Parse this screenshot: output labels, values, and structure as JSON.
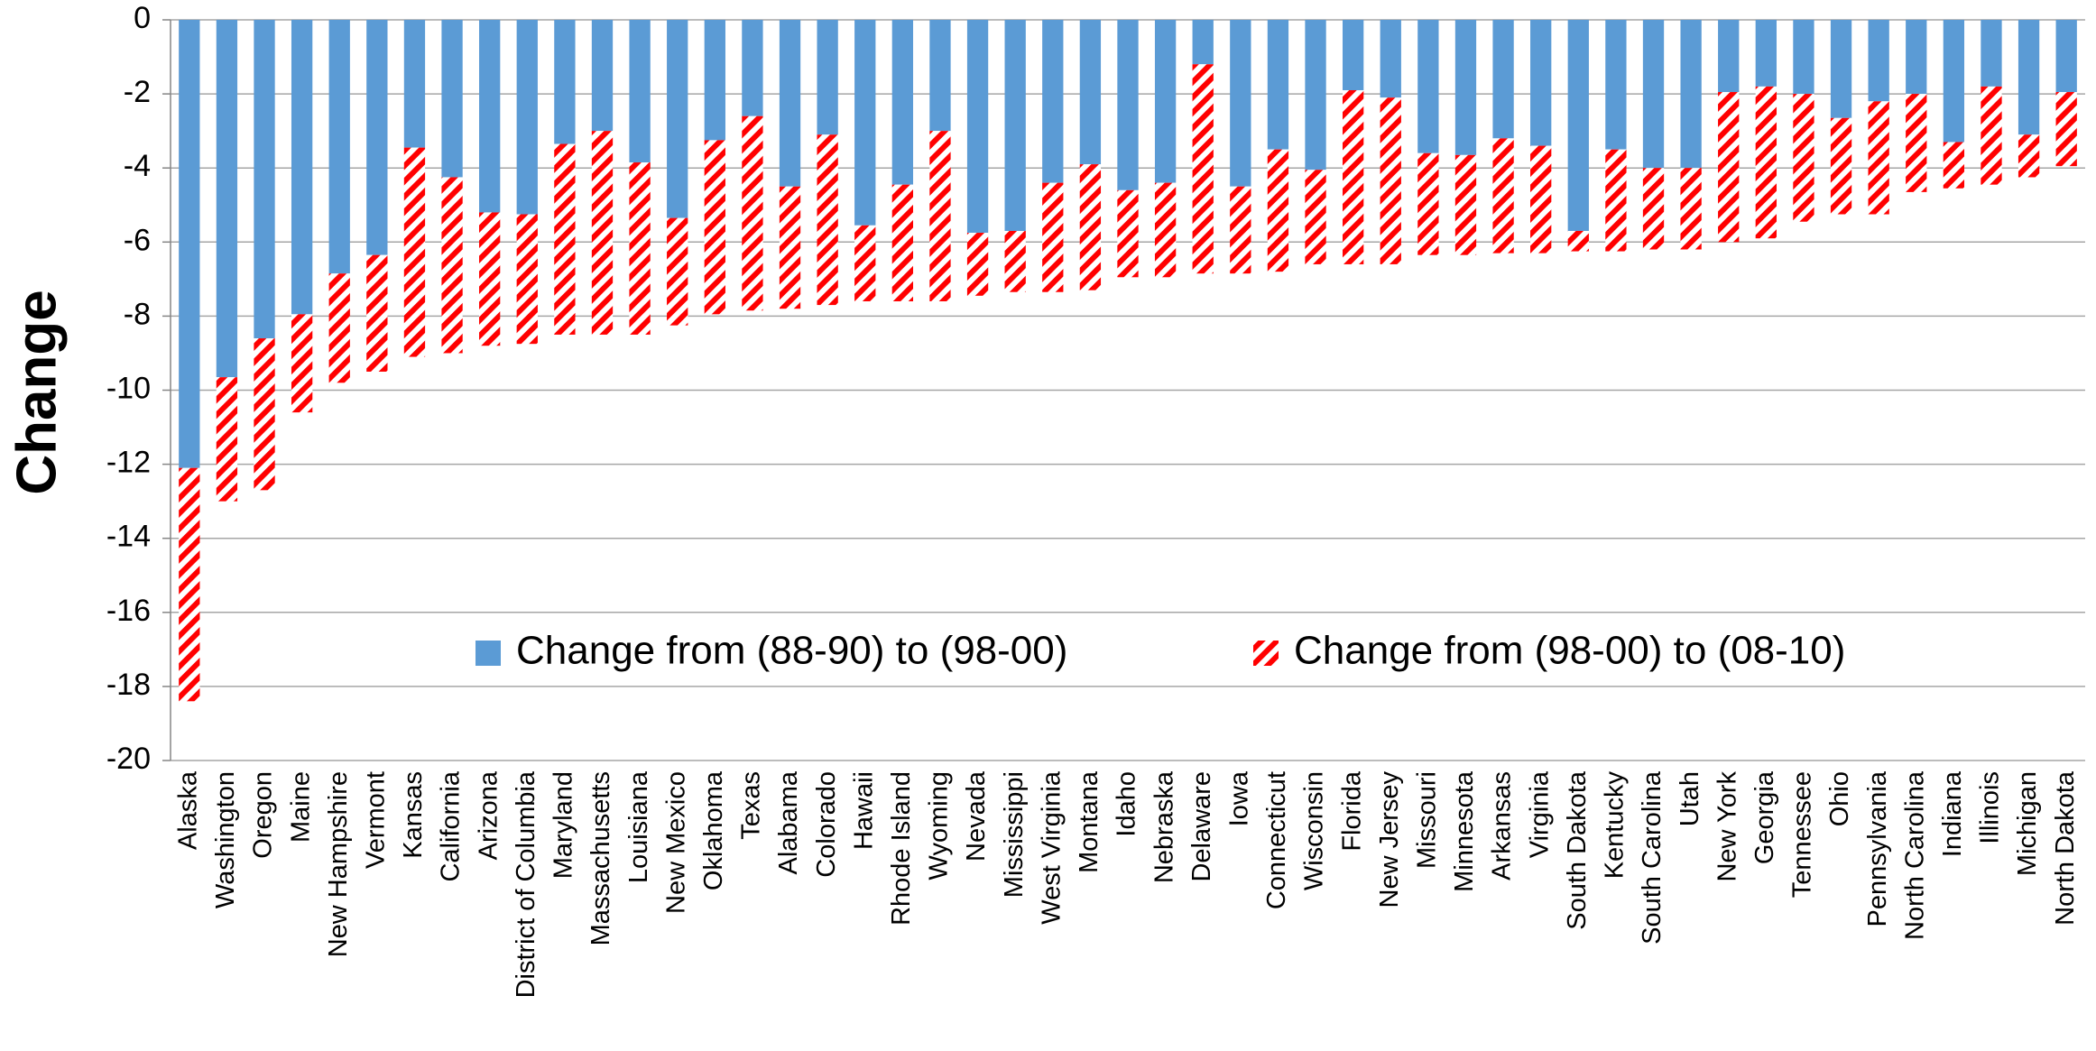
{
  "chart_data": {
    "type": "stacked-bar",
    "y_label": "Change",
    "categories": [
      "Alaska",
      "Washington",
      "Oregon",
      "Maine",
      "New Hampshire",
      "Vermont",
      "Kansas",
      "California",
      "Arizona",
      "District of Columbia",
      "Maryland",
      "Massachusetts",
      "Louisiana",
      "New Mexico",
      "Oklahoma",
      "Texas",
      "Alabama",
      "Colorado",
      "Hawaii",
      "Rhode Island",
      "Wyoming",
      "Nevada",
      "Mississippi",
      "West Virginia",
      "Montana",
      "Idaho",
      "Nebraska",
      "Delaware",
      "Iowa",
      "Connecticut",
      "Wisconsin",
      "Florida",
      "New Jersey",
      "Missouri",
      "Minnesota",
      "Arkansas",
      "Virginia",
      "South Dakota",
      "Kentucky",
      "South Carolina",
      "Utah",
      "New York",
      "Georgia",
      "Tennessee",
      "Ohio",
      "Pennsylvania",
      "North Carolina",
      "Indiana",
      "Illinois",
      "Michigan",
      "North Dakota"
    ],
    "series": [
      {
        "name": "Change from (88-90) to (98-00)",
        "color": "#5b9bd5",
        "fill": "solid",
        "values": [
          -12.1,
          -9.65,
          -8.6,
          -7.95,
          -6.85,
          -6.35,
          -3.45,
          -4.25,
          -5.2,
          -5.25,
          -3.35,
          -3.0,
          -3.85,
          -5.35,
          -3.25,
          -2.6,
          -4.5,
          -3.1,
          -5.55,
          -4.45,
          -3.0,
          -5.75,
          -5.7,
          -4.4,
          -3.9,
          -4.6,
          -4.4,
          -1.2,
          -4.5,
          -3.5,
          -4.05,
          -1.9,
          -2.1,
          -3.6,
          -3.65,
          -3.2,
          -3.4,
          -5.7,
          -3.5,
          -4.0,
          -4.0,
          -1.95,
          -1.8,
          -2.0,
          -2.65,
          -2.2,
          -2.0,
          -3.3,
          -1.8,
          -3.1,
          -1.95
        ]
      },
      {
        "name": "Change from (98-00) to (08-10)",
        "color": "#ff0000",
        "fill": "hatch",
        "values": [
          -6.3,
          -3.35,
          -4.1,
          -2.65,
          -2.95,
          -3.15,
          -5.65,
          -4.75,
          -3.6,
          -3.5,
          -5.15,
          -5.5,
          -4.65,
          -2.9,
          -4.7,
          -5.25,
          -3.3,
          -4.6,
          -2.05,
          -3.15,
          -4.6,
          -1.7,
          -1.65,
          -2.95,
          -3.4,
          -2.35,
          -2.55,
          -5.65,
          -2.35,
          -3.3,
          -2.55,
          -4.7,
          -4.5,
          -2.75,
          -2.7,
          -3.1,
          -2.9,
          -0.55,
          -2.75,
          -2.2,
          -2.2,
          -4.05,
          -4.1,
          -3.45,
          -2.6,
          -3.05,
          -2.65,
          -1.25,
          -2.65,
          -1.15,
          -2.0
        ]
      }
    ],
    "ylim": [
      0,
      -20
    ],
    "yticks": [
      0,
      -2,
      -4,
      -6,
      -8,
      -10,
      -12,
      -14,
      -16,
      -18,
      -20
    ],
    "grid": true,
    "legend": "inside"
  }
}
